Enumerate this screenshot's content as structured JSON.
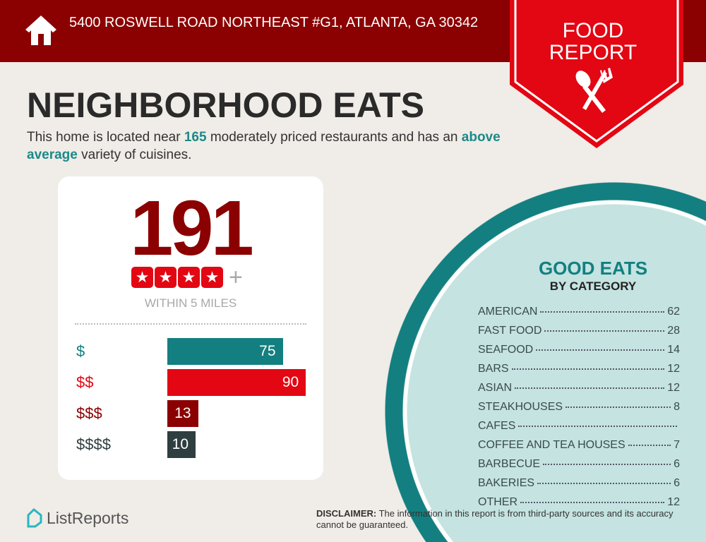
{
  "header": {
    "address": "5400 ROSWELL ROAD NORTHEAST #G1, ATLANTA, GA 30342",
    "badge_line1": "FOOD",
    "badge_line2": "REPORT"
  },
  "title": "NEIGHBORHOOD EATS",
  "intro": {
    "part1": "This home is located near ",
    "count": "165",
    "part2": " moderately priced restaurants and has an ",
    "variety": "above average",
    "part3": " variety of cuisines."
  },
  "card": {
    "total": "191",
    "stars": 4,
    "plus": "+",
    "within": "WITHIN 5 MILES",
    "price_tiers": [
      {
        "label": "$",
        "value": 75,
        "color": "#137f80"
      },
      {
        "label": "$$",
        "value": 90,
        "color": "#e30613"
      },
      {
        "label": "$$$",
        "value": 13,
        "color": "#8b0000"
      },
      {
        "label": "$$$$",
        "value": 10,
        "color": "#2f3e40"
      }
    ]
  },
  "good_eats": {
    "title": "GOOD EATS",
    "subtitle": "BY CATEGORY",
    "categories": [
      {
        "name": "AMERICAN",
        "count": "62"
      },
      {
        "name": "FAST FOOD",
        "count": "28"
      },
      {
        "name": "SEAFOOD",
        "count": "14"
      },
      {
        "name": "BARS",
        "count": "12"
      },
      {
        "name": "ASIAN",
        "count": "12"
      },
      {
        "name": "STEAKHOUSES",
        "count": "8"
      },
      {
        "name": "CAFES",
        "count": ""
      },
      {
        "name": "COFFEE AND TEA HOUSES",
        "count": "7"
      },
      {
        "name": "BARBECUE",
        "count": "6"
      },
      {
        "name": "BAKERIES",
        "count": "6"
      },
      {
        "name": "OTHER",
        "count": "12"
      }
    ]
  },
  "footer": {
    "logo": "ListReports",
    "disclaimer_label": "DISCLAIMER:",
    "disclaimer_text": " The information in this report is from third-party sources and its accuracy cannot be guaranteed."
  },
  "colors": {
    "dark_red": "#8b0000",
    "red": "#e30613",
    "teal": "#137f80"
  }
}
